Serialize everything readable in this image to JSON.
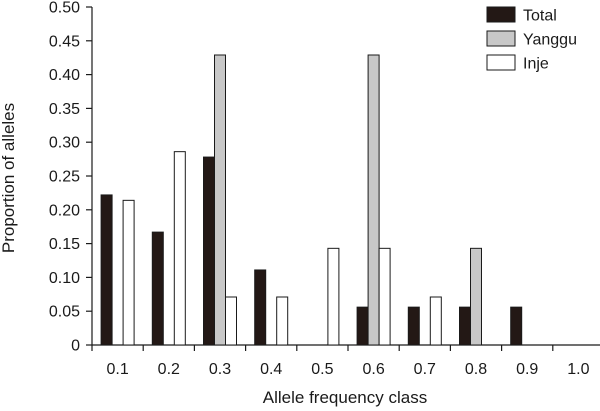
{
  "chart_data": {
    "type": "bar",
    "xlabel": "Allele frequency class",
    "ylabel": "Proportion of alleles",
    "categories": [
      "0.1",
      "0.2",
      "0.3",
      "0.4",
      "0.5",
      "0.6",
      "0.7",
      "0.8",
      "0.9",
      "1.0"
    ],
    "ylim": [
      0,
      0.5
    ],
    "yticks": [
      "0",
      "0.05",
      "0.10",
      "0.15",
      "0.20",
      "0.25",
      "0.30",
      "0.35",
      "0.40",
      "0.45",
      "0.50"
    ],
    "series": [
      {
        "name": "Total",
        "color": "#231815",
        "values": [
          0.222,
          0.167,
          0.278,
          0.111,
          0,
          0.056,
          0.056,
          0.056,
          0.056,
          0
        ]
      },
      {
        "name": "Yanggu",
        "color": "#c8c8c8",
        "values": [
          0,
          0,
          0.429,
          0,
          0,
          0.429,
          0,
          0.143,
          0,
          0
        ]
      },
      {
        "name": "Inje",
        "color": "#ffffff",
        "values": [
          0.214,
          0.286,
          0.071,
          0.071,
          0.143,
          0.143,
          0.071,
          0,
          0,
          0
        ]
      }
    ],
    "legend_position": "top-right",
    "grid": false
  }
}
